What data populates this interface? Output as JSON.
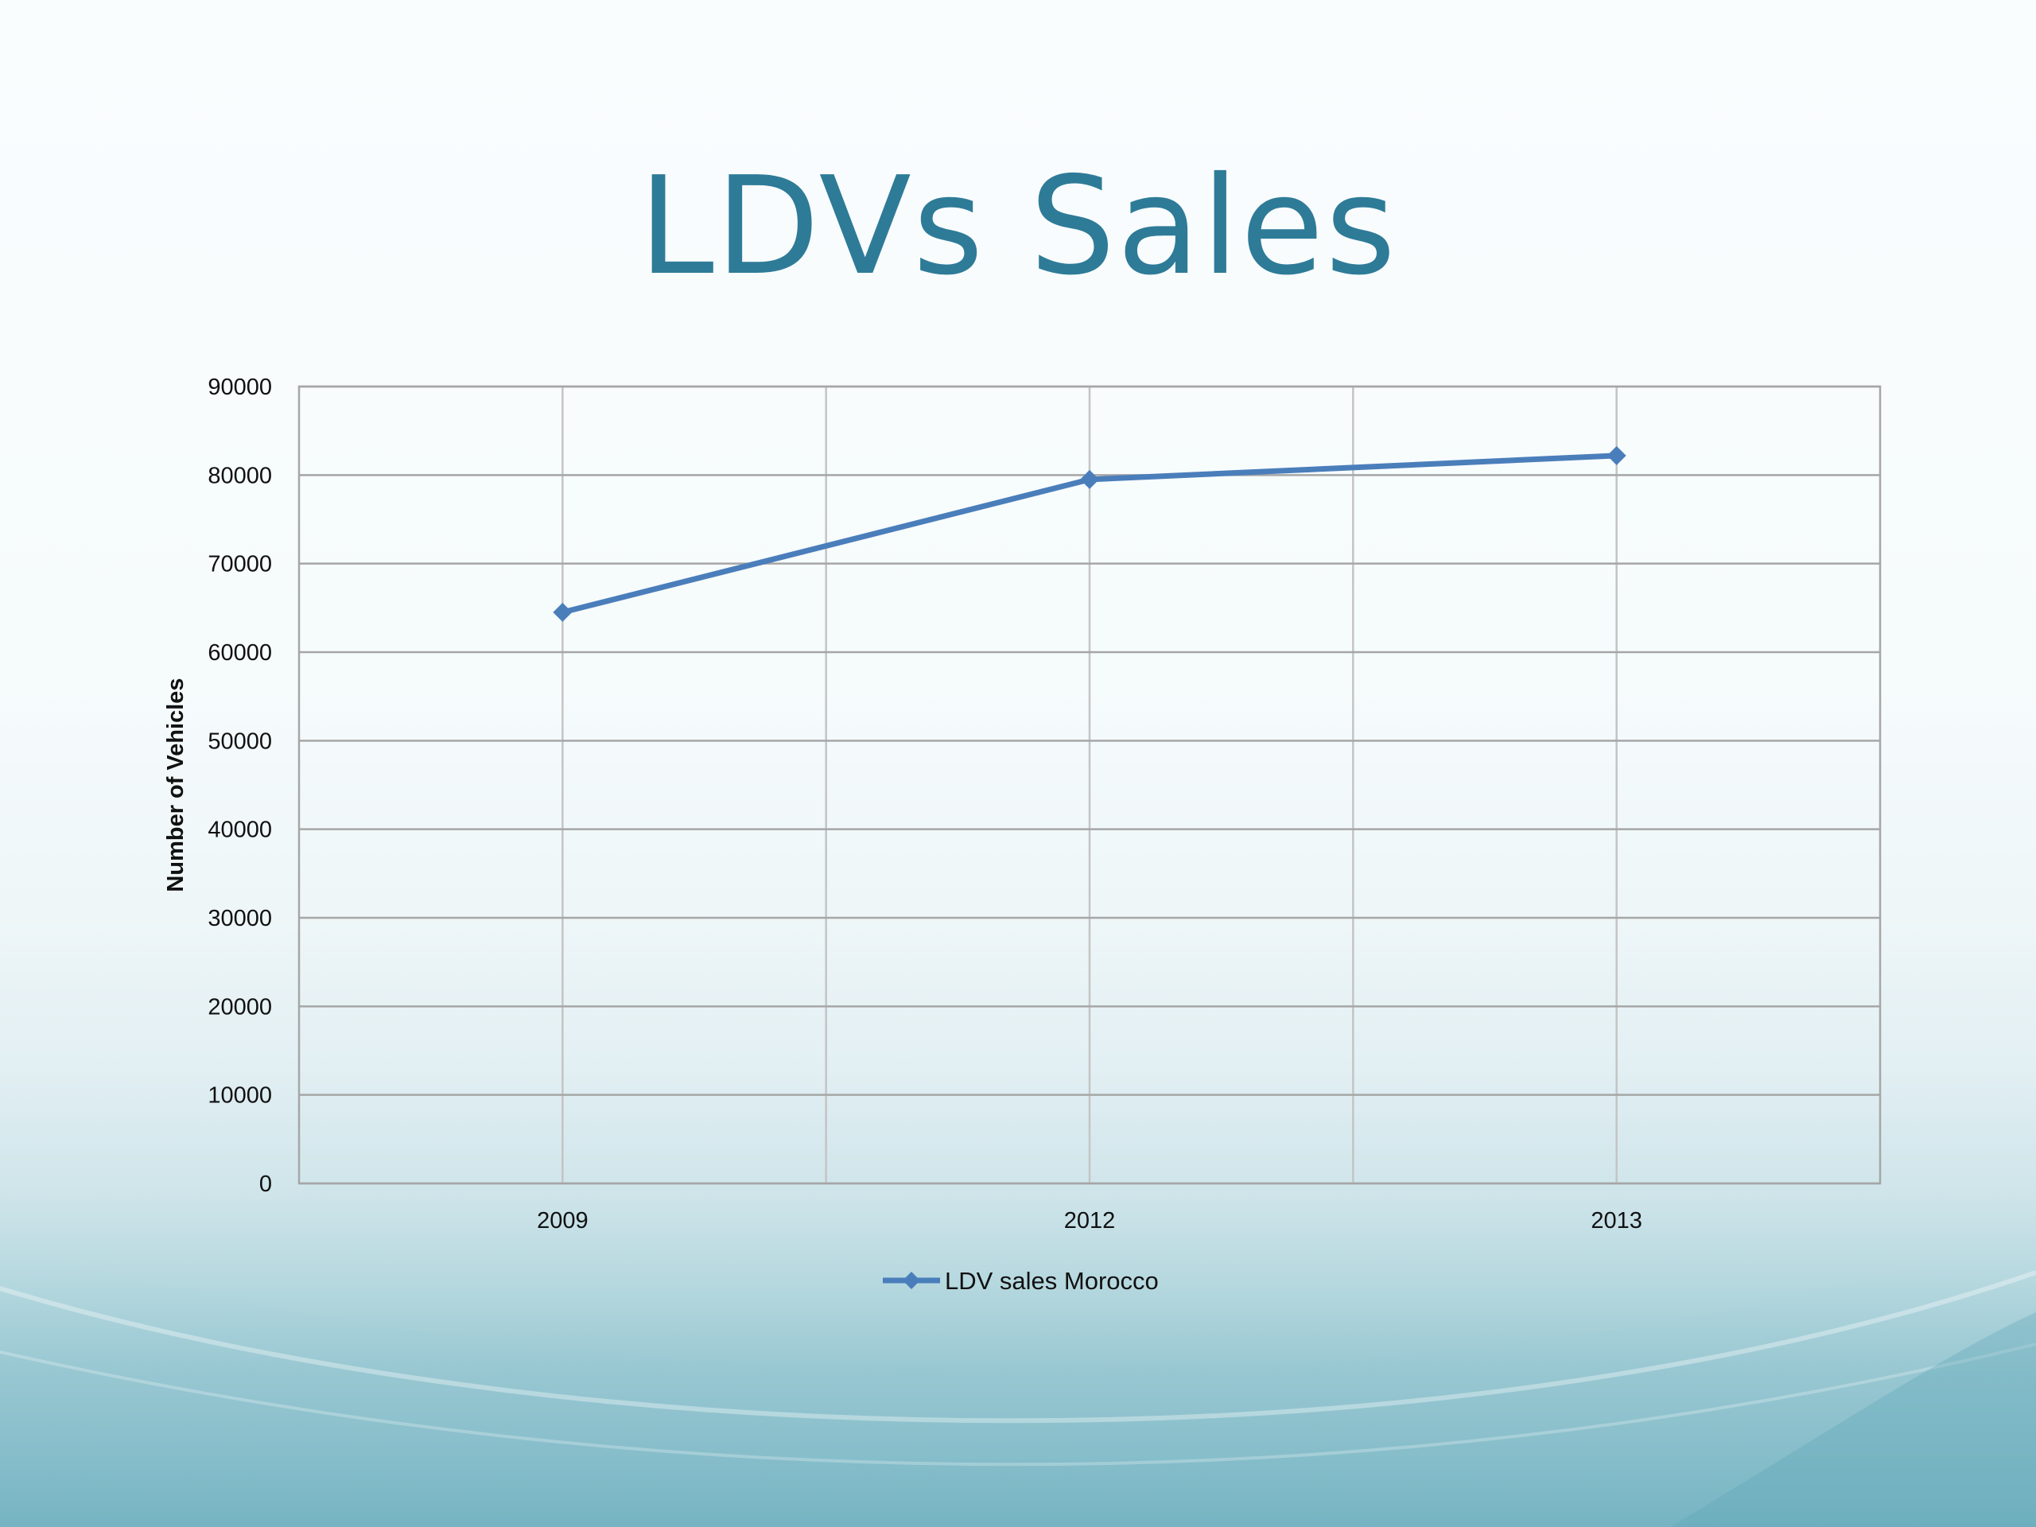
{
  "slide": {
    "title": "LDVs Sales"
  },
  "chart_data": {
    "type": "line",
    "title": "",
    "xlabel": "",
    "ylabel": "Number of Vehicles",
    "categories": [
      "2009",
      "2012",
      "2013"
    ],
    "series": [
      {
        "name": "LDV sales Morocco",
        "values": [
          64500,
          79500,
          82200
        ],
        "color": "#4a7ebb"
      }
    ],
    "ylim": [
      0,
      90000
    ],
    "yticks": [
      0,
      10000,
      20000,
      30000,
      40000,
      50000,
      60000,
      70000,
      80000,
      90000
    ],
    "grid": true,
    "legend": "bottom",
    "colors": {
      "title": "#2e7b98",
      "gridline": "#a6a6a6",
      "line": "#4a7ebb"
    }
  }
}
